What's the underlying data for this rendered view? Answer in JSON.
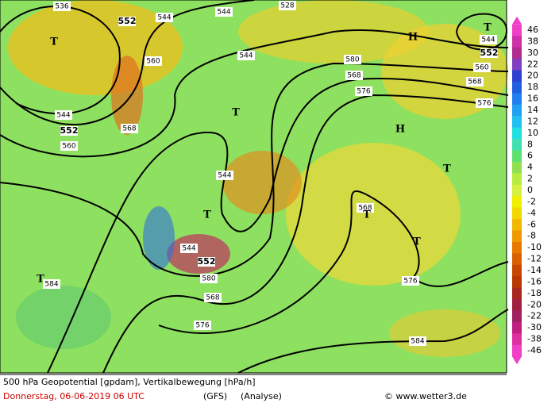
{
  "contour_labels": [
    536,
    552,
    544,
    544,
    528,
    544,
    560,
    544,
    552,
    560,
    568,
    580,
    568,
    576,
    560,
    568,
    576,
    544,
    552,
    544,
    544,
    552,
    580,
    568,
    576,
    568,
    576,
    584,
    584
  ],
  "centers": [
    "T",
    "T",
    "H",
    "T",
    "H",
    "T",
    "T",
    "T",
    "T",
    "T"
  ],
  "legend": {
    "values": [
      46,
      38,
      30,
      22,
      20,
      18,
      16,
      14,
      12,
      10,
      8,
      6,
      4,
      2,
      0,
      -2,
      -4,
      -6,
      -8,
      -10,
      -12,
      -14,
      -16,
      -18,
      -20,
      -22,
      -30,
      -38,
      -46
    ],
    "colors": [
      "#f040c8",
      "#d030a8",
      "#b02c90",
      "#8040c0",
      "#3040d0",
      "#2060e0",
      "#2080f0",
      "#20a0f0",
      "#20c0f0",
      "#20e0e0",
      "#40e0b0",
      "#60e070",
      "#90e050",
      "#b8ec40",
      "#d8f040",
      "#f0f000",
      "#f0d800",
      "#f0b800",
      "#f09800",
      "#e87800",
      "#d86000",
      "#c84800",
      "#b83800",
      "#a82820",
      "#a02040",
      "#a02060",
      "#c02080",
      "#e030a0",
      "#f040c8"
    ]
  },
  "footer": {
    "title": "500 hPa Geopotential [gpdam], Vertikalbewegung [hPa/h]",
    "date": "Donnerstag, 06-06-2019  06 UTC",
    "model": "(GFS)",
    "run": "(Analyse)",
    "credit": "© www.wetter3.de"
  }
}
